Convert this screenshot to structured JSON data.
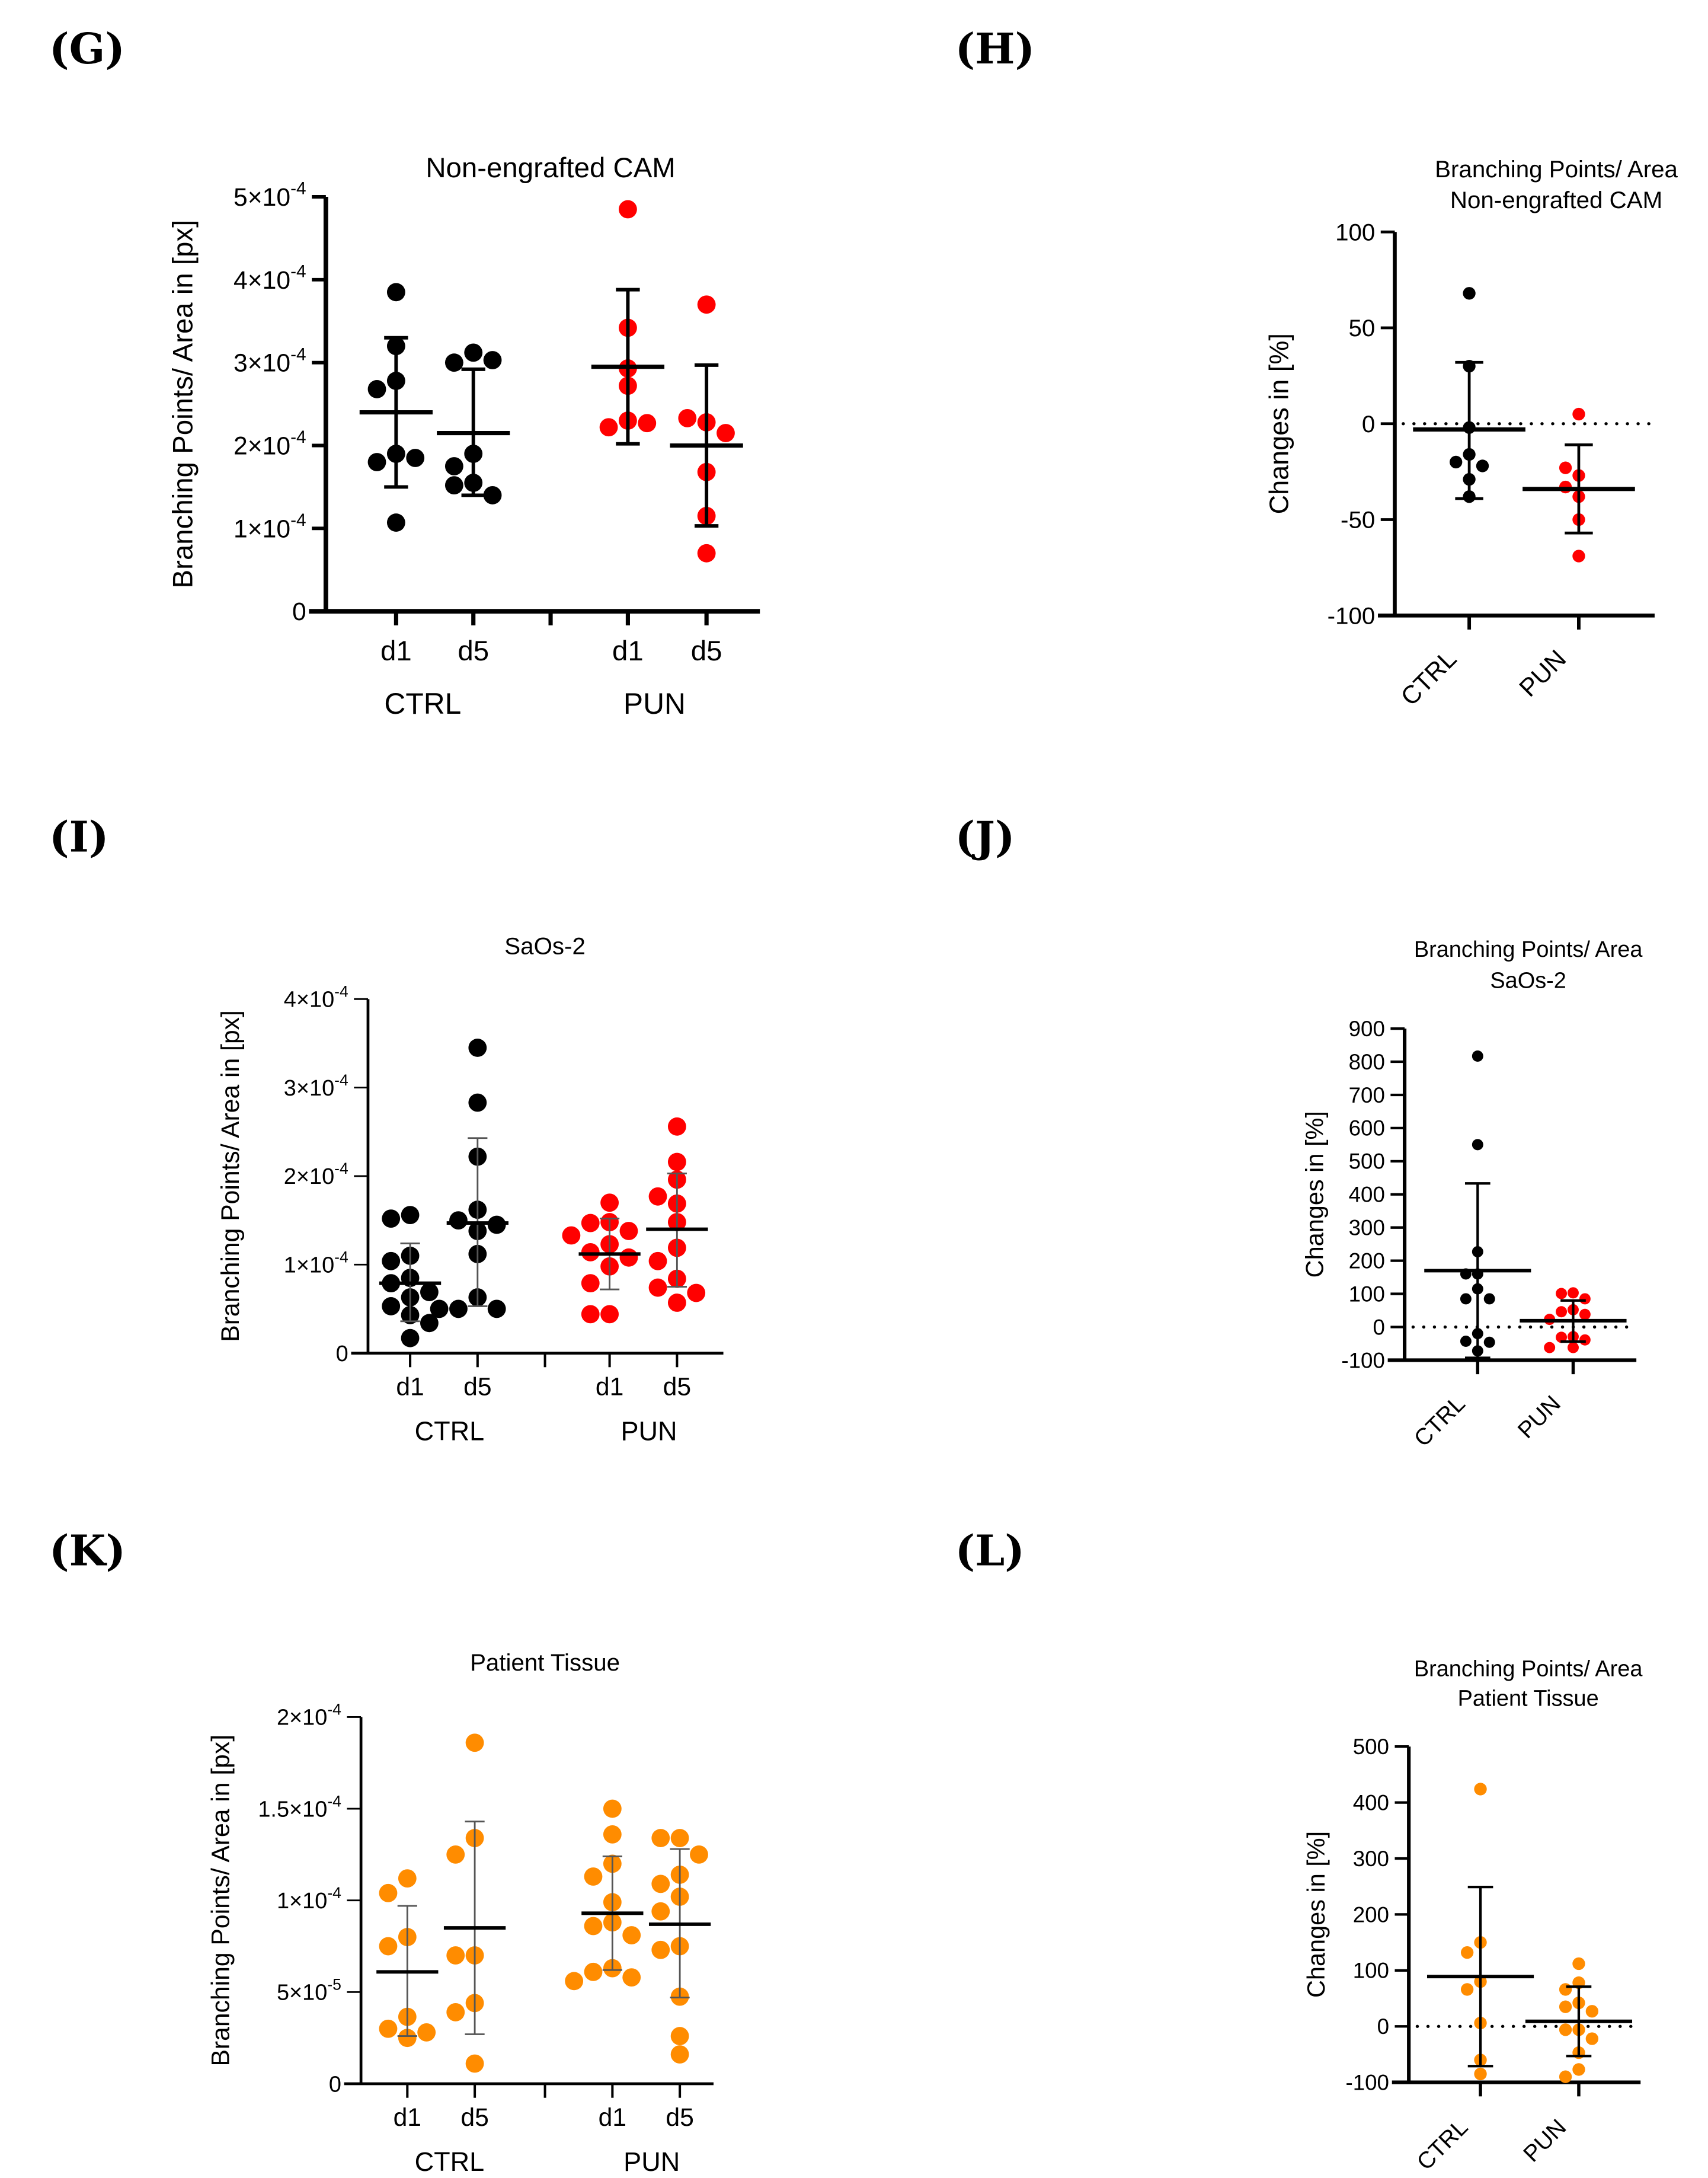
{
  "panels": [
    {
      "label": "(G)"
    },
    {
      "label": "(H)"
    },
    {
      "label": "(I)"
    },
    {
      "label": "(J)"
    },
    {
      "label": "(K)"
    },
    {
      "label": "(L)"
    }
  ],
  "colors": {
    "black": "#000000",
    "red": "#ff0000",
    "orange": "#ff8c00"
  },
  "chart_data": [
    {
      "panel": "G",
      "type": "scatter",
      "title": [
        "Non-engrafted CAM"
      ],
      "ylabel": "Branching Points/ Area in [px]",
      "ylim": [
        0,
        0.0005
      ],
      "yticks": [
        {
          "value": 0,
          "base": "0",
          "exp": ""
        },
        {
          "value": 0.0001,
          "base": "1×10",
          "exp": "-4"
        },
        {
          "value": 0.0002,
          "base": "2×10",
          "exp": "-4"
        },
        {
          "value": 0.0003,
          "base": "3×10",
          "exp": "-4"
        },
        {
          "value": 0.0004,
          "base": "4×10",
          "exp": "-4"
        },
        {
          "value": 0.0005,
          "base": "5×10",
          "exp": "-4"
        }
      ],
      "categories": [
        "CTRL",
        "PUN"
      ],
      "groups": [
        {
          "label": "d1",
          "category": "CTRL",
          "color": "#000000",
          "values": [
            0.000385,
            0.00032,
            0.000278,
            0.000268,
            0.00019,
            0.00018,
            0.000185,
            0.000107
          ],
          "mean": 0.00024,
          "sd_low": 0.00015,
          "sd_high": 0.00033
        },
        {
          "label": "d5",
          "category": "CTRL",
          "color": "#000000",
          "values": [
            0.000312,
            0.0003,
            0.000303,
            0.00019,
            0.000175,
            0.000155,
            0.000152,
            0.00014
          ],
          "mean": 0.000215,
          "sd_low": 0.00014,
          "sd_high": 0.000292
        },
        {
          "label": "d1",
          "category": "PUN",
          "color": "#ff0000",
          "values": [
            0.000485,
            0.000342,
            0.000293,
            0.000272,
            0.00023,
            0.000222,
            0.000227
          ],
          "mean": 0.000295,
          "sd_low": 0.000202,
          "sd_high": 0.000388
        },
        {
          "label": "d5",
          "category": "PUN",
          "color": "#ff0000",
          "values": [
            0.00037,
            0.000228,
            0.000233,
            0.000215,
            0.000168,
            0.000115,
            7e-05
          ],
          "mean": 0.0002,
          "sd_low": 0.000103,
          "sd_high": 0.000297
        }
      ]
    },
    {
      "panel": "H",
      "type": "scatter",
      "title": [
        "Branching Points/ Area",
        "Non-engrafted CAM"
      ],
      "ylabel": "Changes in [%]",
      "ylim": [
        -100,
        100
      ],
      "reference_line": 0,
      "yticks": [
        {
          "value": -100,
          "base": "-100",
          "exp": ""
        },
        {
          "value": -50,
          "base": "-50",
          "exp": ""
        },
        {
          "value": 0,
          "base": "0",
          "exp": ""
        },
        {
          "value": 50,
          "base": "50",
          "exp": ""
        },
        {
          "value": 100,
          "base": "100",
          "exp": ""
        }
      ],
      "groups": [
        {
          "label": "CTRL",
          "color": "#000000",
          "values": [
            68,
            30,
            -2,
            -16,
            -20,
            -22,
            -29,
            -38
          ],
          "mean": -3,
          "sd_low": -39,
          "sd_high": 32
        },
        {
          "label": "PUN",
          "color": "#ff0000",
          "values": [
            5,
            -27,
            -23,
            -33,
            -38,
            -50,
            -69
          ],
          "mean": -34,
          "sd_low": -57,
          "sd_high": -11
        }
      ]
    },
    {
      "panel": "I",
      "type": "scatter",
      "title": [
        "SaOs-2"
      ],
      "ylabel": "Branching Points/ Area in [px]",
      "ylim": [
        0,
        0.0004
      ],
      "yticks": [
        {
          "value": 0,
          "base": "0",
          "exp": ""
        },
        {
          "value": 0.0001,
          "base": "1×10",
          "exp": "-4"
        },
        {
          "value": 0.0002,
          "base": "2×10",
          "exp": "-4"
        },
        {
          "value": 0.0003,
          "base": "3×10",
          "exp": "-4"
        },
        {
          "value": 0.0004,
          "base": "4×10",
          "exp": "-4"
        }
      ],
      "categories": [
        "CTRL",
        "PUN"
      ],
      "groups": [
        {
          "label": "d1",
          "category": "CTRL",
          "color": "#000000",
          "values": [
            0.000156,
            0.000152,
            0.00011,
            0.000104,
            8.5e-05,
            7.9e-05,
            6.9e-05,
            6.3e-05,
            5.3e-05,
            4.3e-05,
            3.4e-05,
            1.7e-05
          ],
          "mean": 7.9e-05,
          "sd_low": 3.6e-05,
          "sd_high": 0.000124
        },
        {
          "label": "d5",
          "category": "CTRL",
          "color": "#000000",
          "values": [
            0.000345,
            0.000283,
            0.000222,
            0.000162,
            0.00015,
            0.000145,
            0.000138,
            0.000112,
            6.3e-05,
            5e-05,
            5e-05,
            5e-05
          ],
          "mean": 0.000147,
          "sd_low": 5.3e-05,
          "sd_high": 0.000243
        },
        {
          "label": "d1",
          "category": "PUN",
          "color": "#ff0000",
          "values": [
            0.00017,
            0.000148,
            0.000147,
            0.000138,
            0.000133,
            0.000123,
            0.000114,
            0.000108,
            9.8e-05,
            7.9e-05,
            4.4e-05,
            4.4e-05
          ],
          "mean": 0.000112,
          "sd_low": 7.2e-05,
          "sd_high": 0.000152
        },
        {
          "label": "d5",
          "category": "PUN",
          "color": "#ff0000",
          "values": [
            0.000256,
            0.000216,
            0.000196,
            0.000177,
            0.000169,
            0.000148,
            0.000119,
            0.000104,
            8.4e-05,
            7.4e-05,
            6.8e-05,
            5.7e-05
          ],
          "mean": 0.00014,
          "sd_low": 7.5e-05,
          "sd_high": 0.000203
        }
      ]
    },
    {
      "panel": "J",
      "type": "scatter",
      "title": [
        "Branching Points/ Area",
        "SaOs-2"
      ],
      "ylabel": "Changes in [%]",
      "ylim": [
        -100,
        900
      ],
      "reference_line": 0,
      "yticks": [
        {
          "value": -100,
          "base": "-100",
          "exp": ""
        },
        {
          "value": 0,
          "base": "0",
          "exp": ""
        },
        {
          "value": 100,
          "base": "100",
          "exp": ""
        },
        {
          "value": 200,
          "base": "200",
          "exp": ""
        },
        {
          "value": 300,
          "base": "300",
          "exp": ""
        },
        {
          "value": 400,
          "base": "400",
          "exp": ""
        },
        {
          "value": 500,
          "base": "500",
          "exp": ""
        },
        {
          "value": 600,
          "base": "600",
          "exp": ""
        },
        {
          "value": 700,
          "base": "700",
          "exp": ""
        },
        {
          "value": 800,
          "base": "800",
          "exp": ""
        },
        {
          "value": 900,
          "base": "900",
          "exp": ""
        }
      ],
      "groups": [
        {
          "label": "CTRL",
          "color": "#000000",
          "values": [
            817,
            550,
            227,
            160,
            160,
            115,
            85,
            85,
            -20,
            -43,
            -46,
            -72
          ],
          "mean": 170,
          "sd_low": -93,
          "sd_high": 433
        },
        {
          "label": "PUN",
          "color": "#ff0000",
          "values": [
            103,
            101,
            85,
            52,
            46,
            38,
            23,
            -29,
            -31,
            -39,
            -62,
            -62
          ],
          "mean": 19,
          "sd_low": -44,
          "sd_high": 80
        }
      ]
    },
    {
      "panel": "K",
      "type": "scatter",
      "title": [
        "Patient Tissue"
      ],
      "ylabel": "Branching Points/ Area in [px]",
      "ylim": [
        0,
        0.0002
      ],
      "yticks": [
        {
          "value": 0,
          "base": "0",
          "exp": ""
        },
        {
          "value": 5e-05,
          "base": "5×10",
          "exp": "-5"
        },
        {
          "value": 0.0001,
          "base": "1×10",
          "exp": "-4"
        },
        {
          "value": 0.00015,
          "base": "1.5×10",
          "exp": "-4"
        },
        {
          "value": 0.0002,
          "base": "2×10",
          "exp": "-4"
        }
      ],
      "categories": [
        "CTRL",
        "PUN"
      ],
      "groups": [
        {
          "label": "d1",
          "category": "CTRL",
          "color": "#ff8c00",
          "values": [
            0.000112,
            0.000104,
            8e-05,
            7.5e-05,
            3.65e-05,
            3e-05,
            2.8e-05,
            2.5e-05
          ],
          "mean": 6.1e-05,
          "sd_low": 2.6e-05,
          "sd_high": 9.7e-05
        },
        {
          "label": "d5",
          "category": "CTRL",
          "color": "#ff8c00",
          "values": [
            0.000186,
            0.000134,
            0.000125,
            7e-05,
            7e-05,
            4.4e-05,
            3.9e-05,
            1.1e-05
          ],
          "mean": 8.5e-05,
          "sd_low": 2.7e-05,
          "sd_high": 0.000143
        },
        {
          "label": "d1",
          "category": "PUN",
          "color": "#ff8c00",
          "values": [
            0.00015,
            0.000136,
            0.00012,
            0.000113,
            9.9e-05,
            8.8e-05,
            8.6e-05,
            8.1e-05,
            6.3e-05,
            6.1e-05,
            5.8e-05,
            5.6e-05
          ],
          "mean": 9.3e-05,
          "sd_low": 6.2e-05,
          "sd_high": 0.000124
        },
        {
          "label": "d5",
          "category": "PUN",
          "color": "#ff8c00",
          "values": [
            0.000134,
            0.000134,
            0.000125,
            0.000114,
            0.000109,
            0.000102,
            9.4e-05,
            7.5e-05,
            7.3e-05,
            4.75e-05,
            2.6e-05,
            1.6e-05
          ],
          "mean": 8.7e-05,
          "sd_low": 4.7e-05,
          "sd_high": 0.000128
        }
      ]
    },
    {
      "panel": "L",
      "type": "scatter",
      "title": [
        "Branching Points/ Area",
        "Patient Tissue"
      ],
      "ylabel": "Changes in [%]",
      "ylim": [
        -100,
        500
      ],
      "reference_line": 0,
      "yticks": [
        {
          "value": -100,
          "base": "-100",
          "exp": ""
        },
        {
          "value": 0,
          "base": "0",
          "exp": ""
        },
        {
          "value": 100,
          "base": "100",
          "exp": ""
        },
        {
          "value": 200,
          "base": "200",
          "exp": ""
        },
        {
          "value": 300,
          "base": "300",
          "exp": ""
        },
        {
          "value": 400,
          "base": "400",
          "exp": ""
        },
        {
          "value": 500,
          "base": "500",
          "exp": ""
        }
      ],
      "groups": [
        {
          "label": "CTRL",
          "color": "#ff8c00",
          "values": [
            424,
            150,
            132,
            80,
            66,
            6,
            -60,
            -85
          ],
          "mean": 89,
          "sd_low": -71,
          "sd_high": 249
        },
        {
          "label": "PUN",
          "color": "#ff8c00",
          "values": [
            112,
            78,
            66,
            42,
            35,
            27,
            -6,
            -6,
            -22,
            -47,
            -77,
            -90
          ],
          "mean": 9,
          "sd_low": -53,
          "sd_high": 71
        }
      ]
    }
  ]
}
